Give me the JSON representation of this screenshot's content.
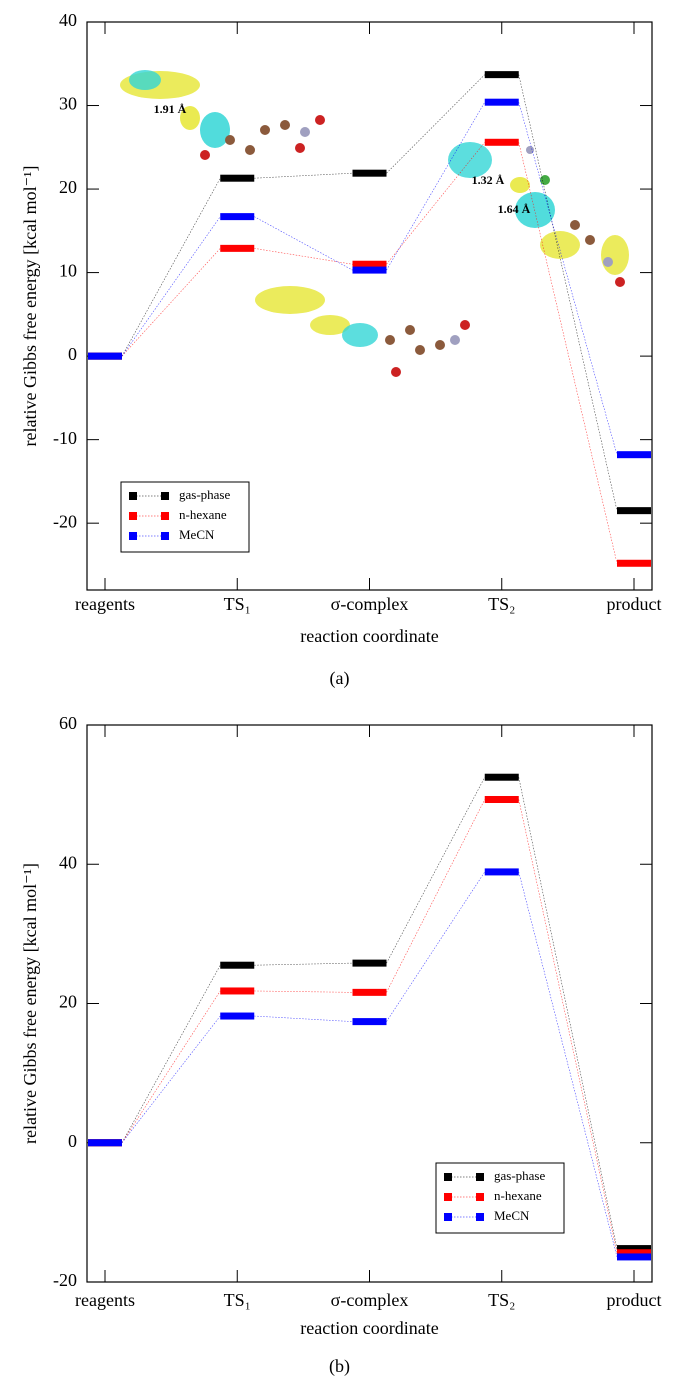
{
  "chart_data": [
    {
      "type": "energy",
      "caption": "(a)",
      "xlabel": "reaction coordinate",
      "ylabel": "relative Gibbs free energy [kcal mol⁻¹]",
      "categories": [
        "reagents",
        "TS₁",
        "σ-complex",
        "TS₂",
        "product"
      ],
      "series": [
        {
          "name": "gas-phase",
          "color": "#000000",
          "values": [
            0,
            21.3,
            21.9,
            33.7,
            -18.5
          ]
        },
        {
          "name": "n-hexane",
          "color": "#ff0000",
          "values": [
            0,
            12.9,
            11.0,
            25.6,
            -24.8
          ]
        },
        {
          "name": "MeCN",
          "color": "#0000ff",
          "values": [
            0,
            16.7,
            10.3,
            30.4,
            -11.8
          ]
        }
      ],
      "ylim": [
        -28,
        40
      ],
      "yticks": [
        -20,
        -10,
        0,
        10,
        20,
        30,
        40
      ],
      "legend": "lower left",
      "annotations": [
        "1.91 Å",
        "1.32 Å",
        "1.64 Å"
      ]
    },
    {
      "type": "energy",
      "caption": "(b)",
      "xlabel": "reaction coordinate",
      "ylabel": "relative Gibbs free energy [kcal mol⁻¹]",
      "categories": [
        "reagents",
        "TS₁",
        "σ-complex",
        "TS₂",
        "product"
      ],
      "series": [
        {
          "name": "gas-phase",
          "color": "#000000",
          "values": [
            0,
            25.5,
            25.8,
            52.5,
            -15.2
          ]
        },
        {
          "name": "n-hexane",
          "color": "#ff0000",
          "values": [
            0,
            21.8,
            21.6,
            49.3,
            -15.8
          ]
        },
        {
          "name": "MeCN",
          "color": "#0000ff",
          "values": [
            0,
            18.2,
            17.4,
            38.9,
            -16.4
          ]
        }
      ],
      "ylim": [
        -20,
        60
      ],
      "yticks": [
        -20,
        0,
        20,
        40,
        60
      ],
      "legend": "lower right"
    }
  ]
}
